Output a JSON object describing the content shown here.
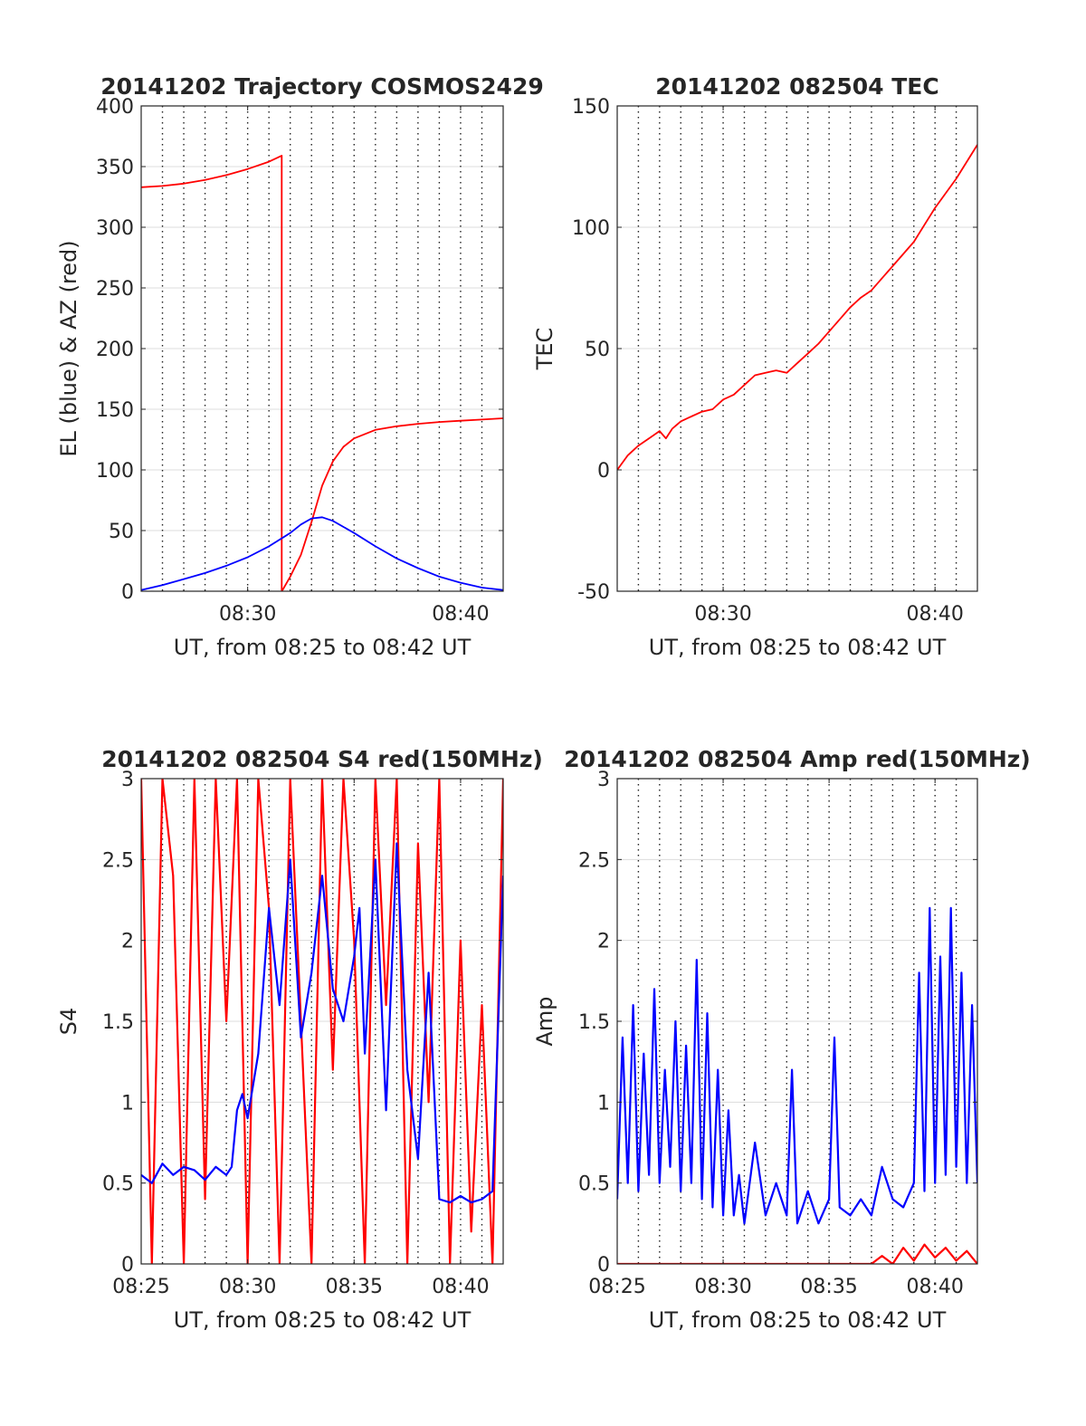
{
  "figure": {
    "background": "#ffffff"
  },
  "chart_data": [
    {
      "type": "line",
      "title": "20141202 Trajectory COSMOS2429",
      "xlabel": "UT, from 08:25 to 08:42 UT",
      "ylabel": "EL (blue) & AZ (red)",
      "xlim": [
        0,
        17
      ],
      "ylim": [
        0,
        400
      ],
      "xticks": [
        {
          "t": 5,
          "label": "08:30"
        },
        {
          "t": 15,
          "label": "08:40"
        }
      ],
      "yticks": [
        0,
        50,
        100,
        150,
        200,
        250,
        300,
        350,
        400
      ],
      "grid": true,
      "series": [
        {
          "color": "#ff0000",
          "x": [
            0,
            1,
            2,
            3,
            4,
            5,
            6,
            6.6,
            6.6,
            6.61,
            7,
            7.5,
            8,
            8.5,
            9,
            9.5,
            10,
            11,
            12,
            13,
            14,
            15,
            16,
            17
          ],
          "y": [
            333,
            334,
            336,
            339,
            343,
            348,
            354,
            359,
            0,
            0,
            12,
            30,
            57,
            87,
            107,
            119,
            126,
            133,
            136,
            138,
            139.5,
            140.5,
            141.5,
            142.5
          ]
        },
        {
          "color": "#0000ff",
          "x": [
            0,
            1,
            2,
            3,
            4,
            5,
            6,
            7,
            7.5,
            8,
            8.5,
            9,
            10,
            11,
            12,
            13,
            14,
            15,
            16,
            17
          ],
          "y": [
            1,
            5,
            10,
            15,
            21,
            28,
            37,
            48,
            55,
            60,
            61,
            58,
            48,
            37,
            27,
            19,
            12,
            7,
            3,
            1
          ]
        }
      ]
    },
    {
      "type": "line",
      "title": "20141202 082504 TEC",
      "xlabel": "UT, from 08:25 to 08:42 UT",
      "ylabel": "TEC",
      "xlim": [
        0,
        17
      ],
      "ylim": [
        -50,
        150
      ],
      "xticks": [
        {
          "t": 5,
          "label": "08:30"
        },
        {
          "t": 15,
          "label": "08:40"
        }
      ],
      "yticks": [
        -50,
        0,
        50,
        100,
        150
      ],
      "grid": true,
      "series": [
        {
          "color": "#ff0000",
          "x": [
            0,
            0.5,
            1,
            1.5,
            2,
            2.3,
            2.6,
            3,
            3.5,
            4,
            4.5,
            5,
            5.5,
            6,
            6.5,
            7,
            7.5,
            8,
            8.5,
            9,
            9.5,
            10,
            10.5,
            11,
            11.5,
            12,
            12.5,
            13,
            13.5,
            14,
            14.5,
            15,
            15.5,
            16,
            16.5,
            17
          ],
          "y": [
            0,
            6,
            10,
            13,
            16,
            13,
            17,
            20,
            22,
            24,
            25,
            29,
            31,
            35,
            39,
            40,
            41,
            40,
            44,
            48,
            52,
            57,
            62,
            67,
            71,
            74,
            79,
            84,
            89,
            94,
            101,
            108,
            114,
            120,
            127,
            134
          ]
        }
      ]
    },
    {
      "type": "line",
      "title": "20141202 082504 S4 red(150MHz)",
      "xlabel": "UT, from 08:25 to 08:42 UT",
      "ylabel": "S4",
      "xlim": [
        0,
        17
      ],
      "ylim": [
        0,
        3
      ],
      "xticks": [
        {
          "t": 0,
          "label": "08:25"
        },
        {
          "t": 5,
          "label": "08:30"
        },
        {
          "t": 10,
          "label": "08:35"
        },
        {
          "t": 15,
          "label": "08:40"
        }
      ],
      "yticks": [
        0,
        0.5,
        1,
        1.5,
        2,
        2.5,
        3
      ],
      "grid": true,
      "series": [
        {
          "color": "#ff0000",
          "x": [
            0,
            0.5,
            1,
            1.5,
            2,
            2.5,
            3,
            3.5,
            4,
            4.5,
            5,
            5.5,
            6,
            6.5,
            7,
            7.5,
            8,
            8.5,
            9,
            9.5,
            10,
            10.5,
            11,
            11.5,
            12,
            12.5,
            13,
            13.5,
            14,
            14.5,
            15,
            15.5,
            16,
            16.5,
            17
          ],
          "y": [
            3,
            0,
            3,
            2.4,
            0,
            3,
            0.4,
            3,
            1.5,
            3,
            0,
            3,
            2.2,
            0,
            3,
            1.5,
            0,
            3,
            1.2,
            3,
            2,
            0,
            3,
            1.6,
            3,
            0,
            2.6,
            1,
            3,
            0,
            2,
            0.2,
            1.6,
            0,
            3
          ]
        },
        {
          "color": "#0000ff",
          "x": [
            0,
            0.5,
            1,
            1.5,
            2,
            2.5,
            3,
            3.5,
            4,
            4.25,
            4.5,
            4.75,
            5,
            5.5,
            6,
            6.5,
            7,
            7.5,
            8,
            8.5,
            9,
            9.5,
            10,
            10.25,
            10.5,
            11,
            11.5,
            12,
            12.5,
            13,
            13.5,
            14,
            14.5,
            15,
            15.5,
            16,
            16.5,
            17
          ],
          "y": [
            0.55,
            0.5,
            0.62,
            0.55,
            0.6,
            0.58,
            0.52,
            0.6,
            0.55,
            0.6,
            0.95,
            1.05,
            0.9,
            1.3,
            2.2,
            1.6,
            2.5,
            1.4,
            1.8,
            2.4,
            1.7,
            1.5,
            1.9,
            2.2,
            1.3,
            2.5,
            0.95,
            2.6,
            1.2,
            0.65,
            1.8,
            0.4,
            0.38,
            0.42,
            0.38,
            0.4,
            0.45,
            2.4
          ]
        }
      ]
    },
    {
      "type": "line",
      "title": "20141202 082504 Amp red(150MHz)",
      "xlabel": "UT, from 08:25 to 08:42 UT",
      "ylabel": "Amp",
      "xlim": [
        0,
        17
      ],
      "ylim": [
        0,
        3
      ],
      "xticks": [
        {
          "t": 0,
          "label": "08:25"
        },
        {
          "t": 5,
          "label": "08:30"
        },
        {
          "t": 10,
          "label": "08:35"
        },
        {
          "t": 15,
          "label": "08:40"
        }
      ],
      "yticks": [
        0,
        0.5,
        1,
        1.5,
        2,
        2.5,
        3
      ],
      "grid": true,
      "series": [
        {
          "color": "#ff0000",
          "x": [
            0,
            1,
            2,
            3,
            4,
            5,
            6,
            7,
            8,
            9,
            10,
            11,
            12,
            12.5,
            13,
            13.5,
            14,
            14.5,
            15,
            15.5,
            16,
            16.5,
            17
          ],
          "y": [
            0,
            0,
            0,
            0,
            0,
            0,
            0,
            0,
            0,
            0,
            0,
            0,
            0,
            0.05,
            0,
            0.1,
            0.02,
            0.12,
            0.04,
            0.1,
            0.02,
            0.08,
            0
          ]
        },
        {
          "color": "#0000ff",
          "x": [
            0,
            0.25,
            0.5,
            0.75,
            1,
            1.25,
            1.5,
            1.75,
            2,
            2.25,
            2.5,
            2.75,
            3,
            3.25,
            3.5,
            3.75,
            4,
            4.25,
            4.5,
            4.75,
            5,
            5.25,
            5.5,
            5.75,
            6,
            6.5,
            7,
            7.5,
            8,
            8.25,
            8.5,
            9,
            9.5,
            10,
            10.25,
            10.5,
            11,
            11.5,
            12,
            12.5,
            13,
            13.5,
            14,
            14.25,
            14.5,
            14.75,
            15,
            15.25,
            15.5,
            15.75,
            16,
            16.25,
            16.5,
            16.75,
            17
          ],
          "y": [
            0.4,
            1.4,
            0.5,
            1.6,
            0.45,
            1.3,
            0.55,
            1.7,
            0.5,
            1.2,
            0.6,
            1.5,
            0.45,
            1.35,
            0.5,
            1.88,
            0.4,
            1.55,
            0.35,
            1.2,
            0.3,
            0.95,
            0.3,
            0.55,
            0.25,
            0.75,
            0.3,
            0.5,
            0.3,
            1.2,
            0.25,
            0.45,
            0.25,
            0.4,
            1.4,
            0.35,
            0.3,
            0.4,
            0.3,
            0.6,
            0.4,
            0.35,
            0.5,
            1.8,
            0.45,
            2.2,
            0.5,
            1.9,
            0.55,
            2.2,
            0.6,
            1.8,
            0.5,
            1.6,
            0.5
          ]
        }
      ]
    }
  ]
}
